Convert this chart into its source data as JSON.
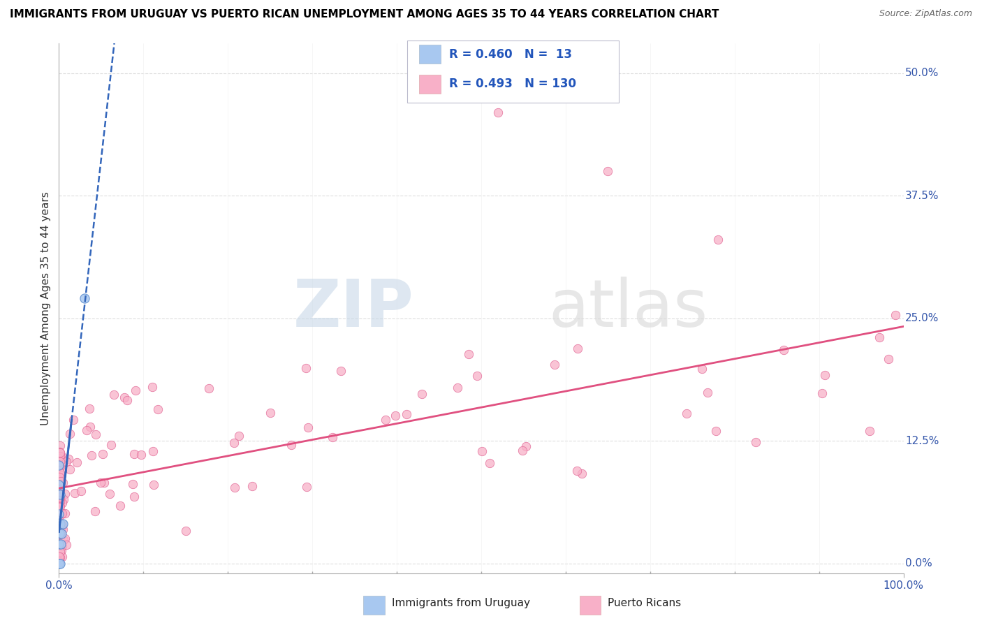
{
  "title": "IMMIGRANTS FROM URUGUAY VS PUERTO RICAN UNEMPLOYMENT AMONG AGES 35 TO 44 YEARS CORRELATION CHART",
  "source": "Source: ZipAtlas.com",
  "ylabel": "Unemployment Among Ages 35 to 44 years",
  "x_min": 0.0,
  "x_max": 1.0,
  "y_min": -0.01,
  "y_max": 0.53,
  "right_yticks": [
    0.0,
    0.125,
    0.25,
    0.375,
    0.5
  ],
  "right_yticklabels": [
    "0.0%",
    "12.5%",
    "25.0%",
    "37.5%",
    "50.0%"
  ],
  "legend_r1": "R = 0.460",
  "legend_n1": "N =  13",
  "legend_r2": "R = 0.493",
  "legend_n2": "N = 130",
  "blue_fill_color": "#A8C8F0",
  "blue_edge_color": "#5588CC",
  "blue_line_color": "#3366BB",
  "pink_fill_color": "#F8B0C8",
  "pink_edge_color": "#E06090",
  "pink_line_color": "#E05080",
  "watermark_zip": "ZIP",
  "watermark_atlas": "atlas",
  "grid_color": "#DDDDDD",
  "title_fontsize": 11,
  "source_fontsize": 9,
  "tick_label_fontsize": 11,
  "legend_fontsize": 12
}
